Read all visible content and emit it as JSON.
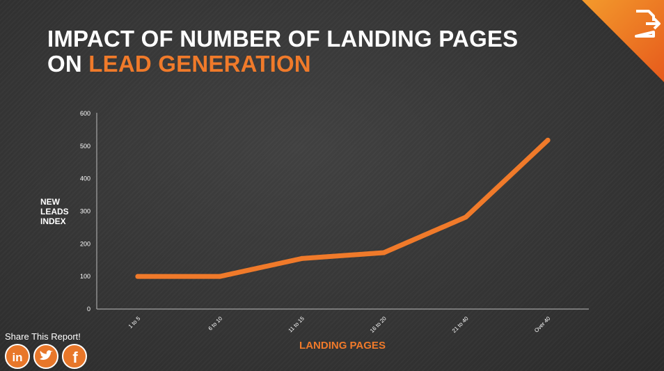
{
  "title": {
    "line1": "IMPACT OF NUMBER OF LANDING PAGES",
    "line2_prefix": "ON ",
    "line2_accent": "LEAD GENERATION"
  },
  "colors": {
    "accent": "#f07a2a",
    "text": "#ffffff",
    "axis": "#bdbdbd"
  },
  "corner_icon": "export-document-icon",
  "share": {
    "label": "Share This Report!",
    "icons": [
      "linkedin-icon",
      "twitter-icon",
      "facebook-icon"
    ]
  },
  "chart_data": {
    "type": "line",
    "categories": [
      "1 to 5",
      "6 to 10",
      "11 to 15",
      "16 to 20",
      "21 to 40",
      "Over 40"
    ],
    "values": [
      100,
      100,
      155,
      173,
      282,
      518
    ],
    "xlabel": "LANDING PAGES",
    "ylabel": "NEW LEADS INDEX",
    "ylim": [
      0,
      600
    ],
    "yticks": [
      0,
      100,
      200,
      300,
      400,
      500,
      600
    ],
    "grid": false,
    "legend": "none"
  }
}
